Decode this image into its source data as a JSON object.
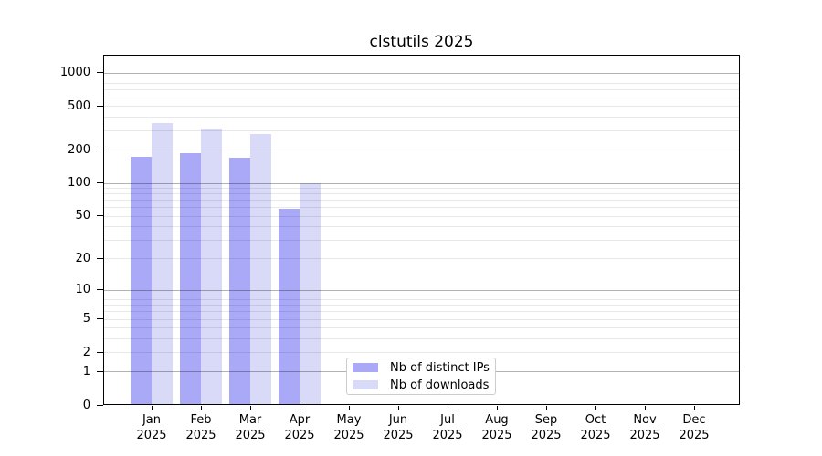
{
  "chart_data": {
    "type": "bar",
    "title": "clstutils 2025",
    "x_tick_year": "2025",
    "categories": [
      "Jan",
      "Feb",
      "Mar",
      "Apr",
      "May",
      "Jun",
      "Jul",
      "Aug",
      "Sep",
      "Oct",
      "Nov",
      "Dec"
    ],
    "series": [
      {
        "name": "Nb of distinct IPs",
        "color": "#a9a9f8",
        "values": [
          172,
          185,
          168,
          58,
          0,
          0,
          0,
          0,
          0,
          0,
          0,
          0
        ]
      },
      {
        "name": "Nb of downloads",
        "color": "#d9d9f8",
        "values": [
          350,
          310,
          276,
          100,
          0,
          0,
          0,
          0,
          0,
          0,
          0,
          0
        ]
      }
    ],
    "yscale": "log1p",
    "yticks": [
      0,
      1,
      2,
      5,
      10,
      20,
      50,
      100,
      200,
      500,
      1000
    ],
    "ylim": [
      0,
      1450
    ],
    "grid": true,
    "legend_position": "lower center",
    "colors": {
      "major_grid": "rgba(0,0,0,0.30)",
      "minor_grid": "rgba(0,0,0,0.09)",
      "spine": "#000000",
      "text": "#000000"
    }
  }
}
